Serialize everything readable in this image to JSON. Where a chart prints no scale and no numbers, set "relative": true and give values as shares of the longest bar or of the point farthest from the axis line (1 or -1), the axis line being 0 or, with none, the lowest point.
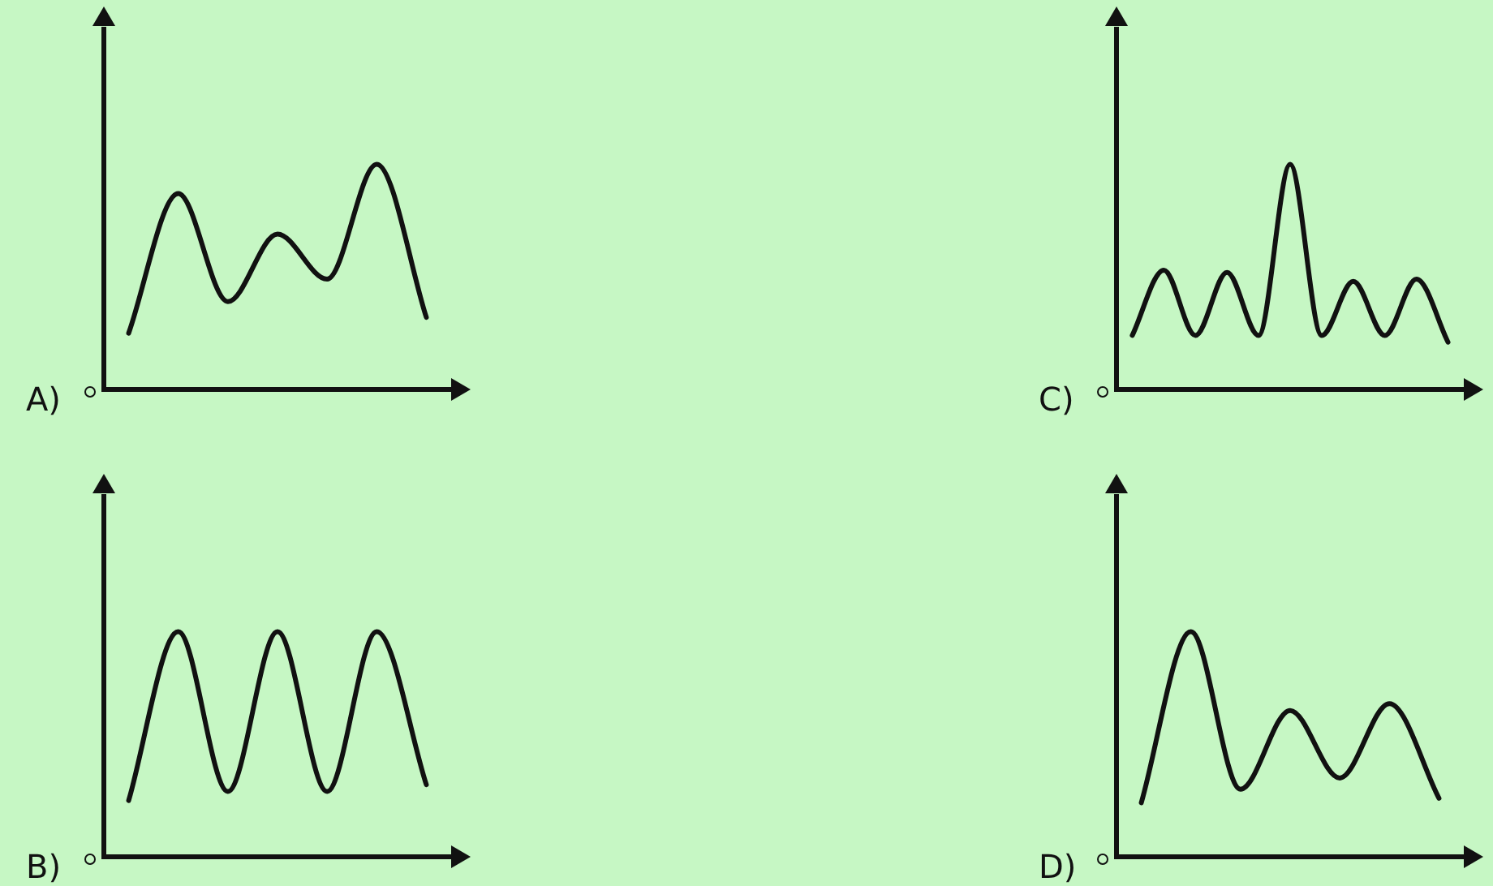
{
  "chart_data": [
    {
      "type": "line",
      "relative": true,
      "tick_labels": false,
      "marker": "none",
      "annotations": [
        "A)"
      ],
      "categories": [
        null,
        null,
        null,
        null,
        null,
        null,
        null
      ],
      "series": [
        {
          "color": "#111111",
          "values": [
            0.25,
            0.87,
            0.39,
            0.69,
            0.49,
            1,
            0.32
          ]
        }
      ]
    },
    {
      "type": "line",
      "relative": true,
      "tick_labels": false,
      "marker": "none",
      "annotations": [
        "C)"
      ],
      "categories": [
        null,
        null,
        null,
        null,
        null,
        null,
        null,
        null,
        null,
        null,
        null
      ],
      "series": [
        {
          "color": "#111111",
          "values": [
            0.24,
            0.53,
            0.24,
            0.52,
            0.24,
            1,
            0.24,
            0.48,
            0.24,
            0.49,
            0.21
          ]
        }
      ]
    },
    {
      "type": "line",
      "relative": true,
      "tick_labels": false,
      "marker": "none",
      "annotations": [
        "B)"
      ],
      "categories": [
        null,
        null,
        null,
        null,
        null,
        null,
        null
      ],
      "series": [
        {
          "color": "#111111",
          "values": [
            0.25,
            1,
            0.29,
            1,
            0.29,
            1,
            0.32
          ]
        }
      ]
    },
    {
      "type": "line",
      "relative": true,
      "tick_labels": false,
      "marker": "none",
      "annotations": [
        "D)"
      ],
      "categories": [
        null,
        null,
        null,
        null,
        null,
        null,
        null
      ],
      "series": [
        {
          "color": "#111111",
          "values": [
            0.24,
            1,
            0.3,
            0.65,
            0.35,
            0.68,
            0.26
          ]
        }
      ]
    }
  ]
}
